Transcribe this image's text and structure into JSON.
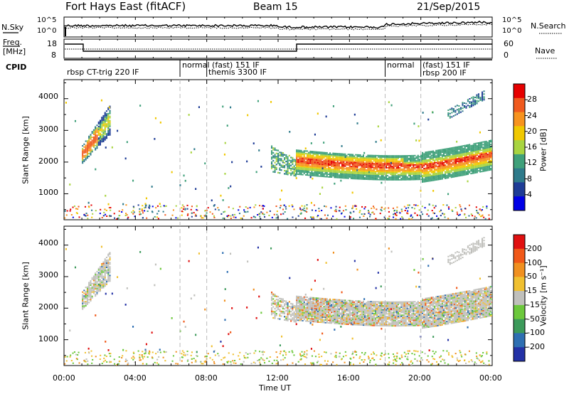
{
  "header": {
    "station": "Fort Hays East (fitACF)",
    "beam": "Beam 15",
    "date": "21/Sep/2015"
  },
  "nsky_panel": {
    "left_label": "N.Sky",
    "right_label": "N.Search",
    "ticks": [
      "10^5",
      "10^0"
    ]
  },
  "freq_panel": {
    "left_label_1": "Freq.",
    "left_label_2": "[MHz]",
    "left_ticks": [
      "18",
      "8"
    ],
    "right_label": "Nave",
    "right_ticks": [
      "60",
      "0"
    ]
  },
  "cpid": {
    "label": "CPID",
    "segments": [
      {
        "name": "rbsp CT-trig 220 IF",
        "start_hr": 0.0
      },
      {
        "name": "normal (fast) 151 IF",
        "start_hr": 6.5
      },
      {
        "name": "themis 3300 IF",
        "start_hr": 8.0
      },
      {
        "name": "normal",
        "start_hr": 18.0
      },
      {
        "name": "(fast) 151 IF",
        "start_hr": 20.0
      },
      {
        "name": "rbsp 200 IF",
        "start_hr": 20.0
      }
    ],
    "boundaries_hr": [
      6.5,
      8.0,
      18.0,
      20.0
    ]
  },
  "chart_data": [
    {
      "type": "heatmap",
      "name": "power",
      "ylabel": "Slant Range [km]",
      "ylim": [
        180,
        4600
      ],
      "yticks": [
        1000,
        2000,
        3000,
        4000
      ],
      "colorbar_label": "Power [dB]",
      "colorbar_ticks": [
        4,
        8,
        12,
        16,
        20,
        24,
        28
      ],
      "colorbar_range": [
        0,
        32
      ],
      "colors": [
        "#0000e6",
        "#1e3c96",
        "#2e7a8a",
        "#3fa07a",
        "#a8d440",
        "#f0c800",
        "#f7931e",
        "#f05a1e",
        "#e60000"
      ]
    },
    {
      "type": "heatmap",
      "name": "velocity",
      "ylabel": "Slant Range [km]",
      "ylim": [
        180,
        4600
      ],
      "yticks": [
        1000,
        2000,
        3000,
        4000
      ],
      "colorbar_label": "Velocity [m s⁻¹]",
      "colorbar_ticks": [
        200,
        100,
        50,
        15,
        -15,
        -50,
        -100,
        -200
      ],
      "colors": [
        "#2331a6",
        "#2e6fb2",
        "#3c9a5a",
        "#6cc83c",
        "#c0c0bc",
        "#f0c030",
        "#f09020",
        "#f05818",
        "#e01010"
      ]
    }
  ],
  "x_axis": {
    "label": "Time UT",
    "range_hr": [
      0,
      24
    ],
    "ticks": [
      "00:00",
      "04:00",
      "08:00",
      "12:00",
      "16:00",
      "20:00",
      "00:00"
    ]
  }
}
